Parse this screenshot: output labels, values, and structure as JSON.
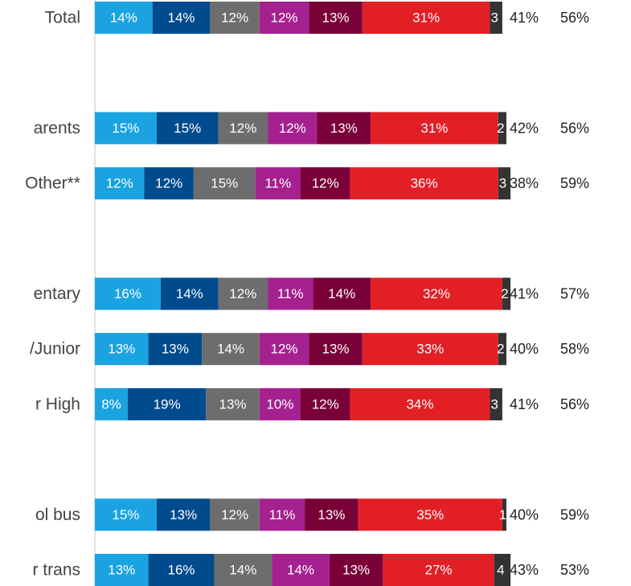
{
  "chart_data": {
    "type": "stacked-bar",
    "categories": [
      "Total",
      "arents",
      "Other**",
      "entary",
      "/Junior",
      "r High",
      "ol bus",
      "r trans"
    ],
    "series": [
      {
        "color": "#1aa3e0",
        "values": [
          14,
          15,
          12,
          16,
          13,
          8,
          15,
          13
        ],
        "value_labels": [
          "14%",
          "15%",
          "12%",
          "16%",
          "13%",
          "8%",
          "15%",
          "13%"
        ]
      },
      {
        "color": "#004b8d",
        "values": [
          14,
          15,
          12,
          14,
          13,
          19,
          13,
          16
        ],
        "value_labels": [
          "14%",
          "15%",
          "12%",
          "14%",
          "13%",
          "19%",
          "13%",
          "16%"
        ]
      },
      {
        "color": "#6d6d6d",
        "values": [
          12,
          12,
          15,
          12,
          14,
          13,
          12,
          14
        ],
        "value_labels": [
          "12%",
          "12%",
          "15%",
          "12%",
          "14%",
          "13%",
          "12%",
          "14%"
        ]
      },
      {
        "color": "#a5218f",
        "values": [
          12,
          12,
          11,
          11,
          12,
          10,
          11,
          14
        ],
        "value_labels": [
          "12%",
          "12%",
          "11%",
          "11%",
          "12%",
          "10%",
          "11%",
          "14%"
        ]
      },
      {
        "color": "#7a0038",
        "values": [
          13,
          13,
          12,
          14,
          13,
          12,
          13,
          13
        ],
        "value_labels": [
          "13%",
          "13%",
          "12%",
          "14%",
          "13%",
          "12%",
          "13%",
          "13%"
        ]
      },
      {
        "color": "#e31f26",
        "values": [
          31,
          31,
          36,
          32,
          33,
          34,
          35,
          27
        ],
        "value_labels": [
          "31%",
          "31%",
          "36%",
          "32%",
          "33%",
          "34%",
          "35%",
          "27%"
        ]
      },
      {
        "color": "#333333",
        "values": [
          3,
          2,
          3,
          2,
          2,
          3,
          1,
          4
        ]
      }
    ],
    "summary": [
      {
        "values": [
          41,
          42,
          38,
          41,
          40,
          41,
          40,
          43
        ],
        "value_labels": [
          "41%",
          "42%",
          "38%",
          "41%",
          "40%",
          "41%",
          "40%",
          "43%"
        ]
      },
      {
        "values": [
          56,
          56,
          59,
          57,
          58,
          56,
          59,
          53
        ],
        "value_labels": [
          "56%",
          "56%",
          "59%",
          "57%",
          "58%",
          "56%",
          "59%",
          "53%"
        ]
      }
    ]
  }
}
